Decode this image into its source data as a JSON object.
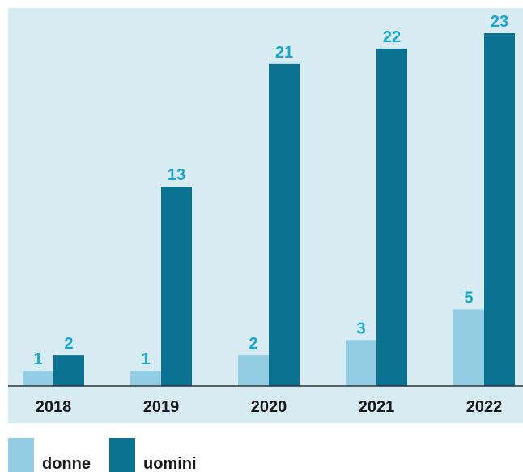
{
  "chart_data": {
    "type": "bar",
    "categories": [
      "2018",
      "2019",
      "2020",
      "2021",
      "2022"
    ],
    "series": [
      {
        "name": "donne",
        "color": "#92cde3",
        "values": [
          1,
          1,
          2,
          3,
          5
        ]
      },
      {
        "name": "uomini",
        "color": "#0b7391",
        "values": [
          2,
          13,
          21,
          22,
          23
        ]
      }
    ]
  }
}
